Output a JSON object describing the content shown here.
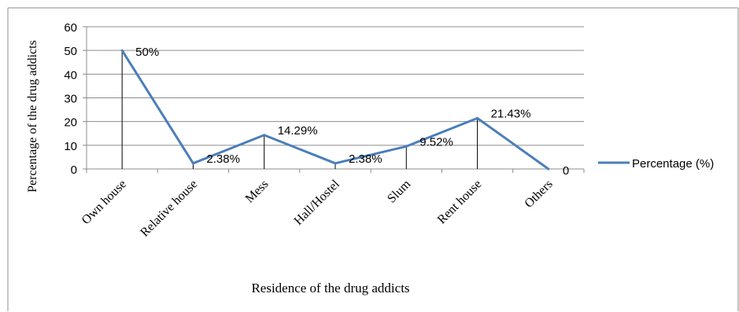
{
  "chart_data": {
    "type": "line",
    "title": "",
    "xlabel": "Residence of the drug addicts",
    "ylabel": "Percentage of the drug addicts",
    "categories": [
      "Own house",
      "Relative house",
      "Mess",
      "Hall/Hostel",
      "Slum",
      "Rent house",
      "Others"
    ],
    "series": [
      {
        "name": "Percentage (%)",
        "values": [
          50,
          2.38,
          14.29,
          2.38,
          9.52,
          21.43,
          0
        ],
        "data_labels": [
          "50%",
          "2.38%",
          "14.29%",
          "2.38%",
          "9.52%",
          "21.43%",
          "0"
        ],
        "color": "#4a7ebb"
      }
    ],
    "yticks": [
      "0",
      "10",
      "20",
      "30",
      "40",
      "50",
      "60"
    ],
    "ylim": [
      0,
      60
    ],
    "grid": true,
    "drop_lines": true,
    "legend_position": "right"
  }
}
